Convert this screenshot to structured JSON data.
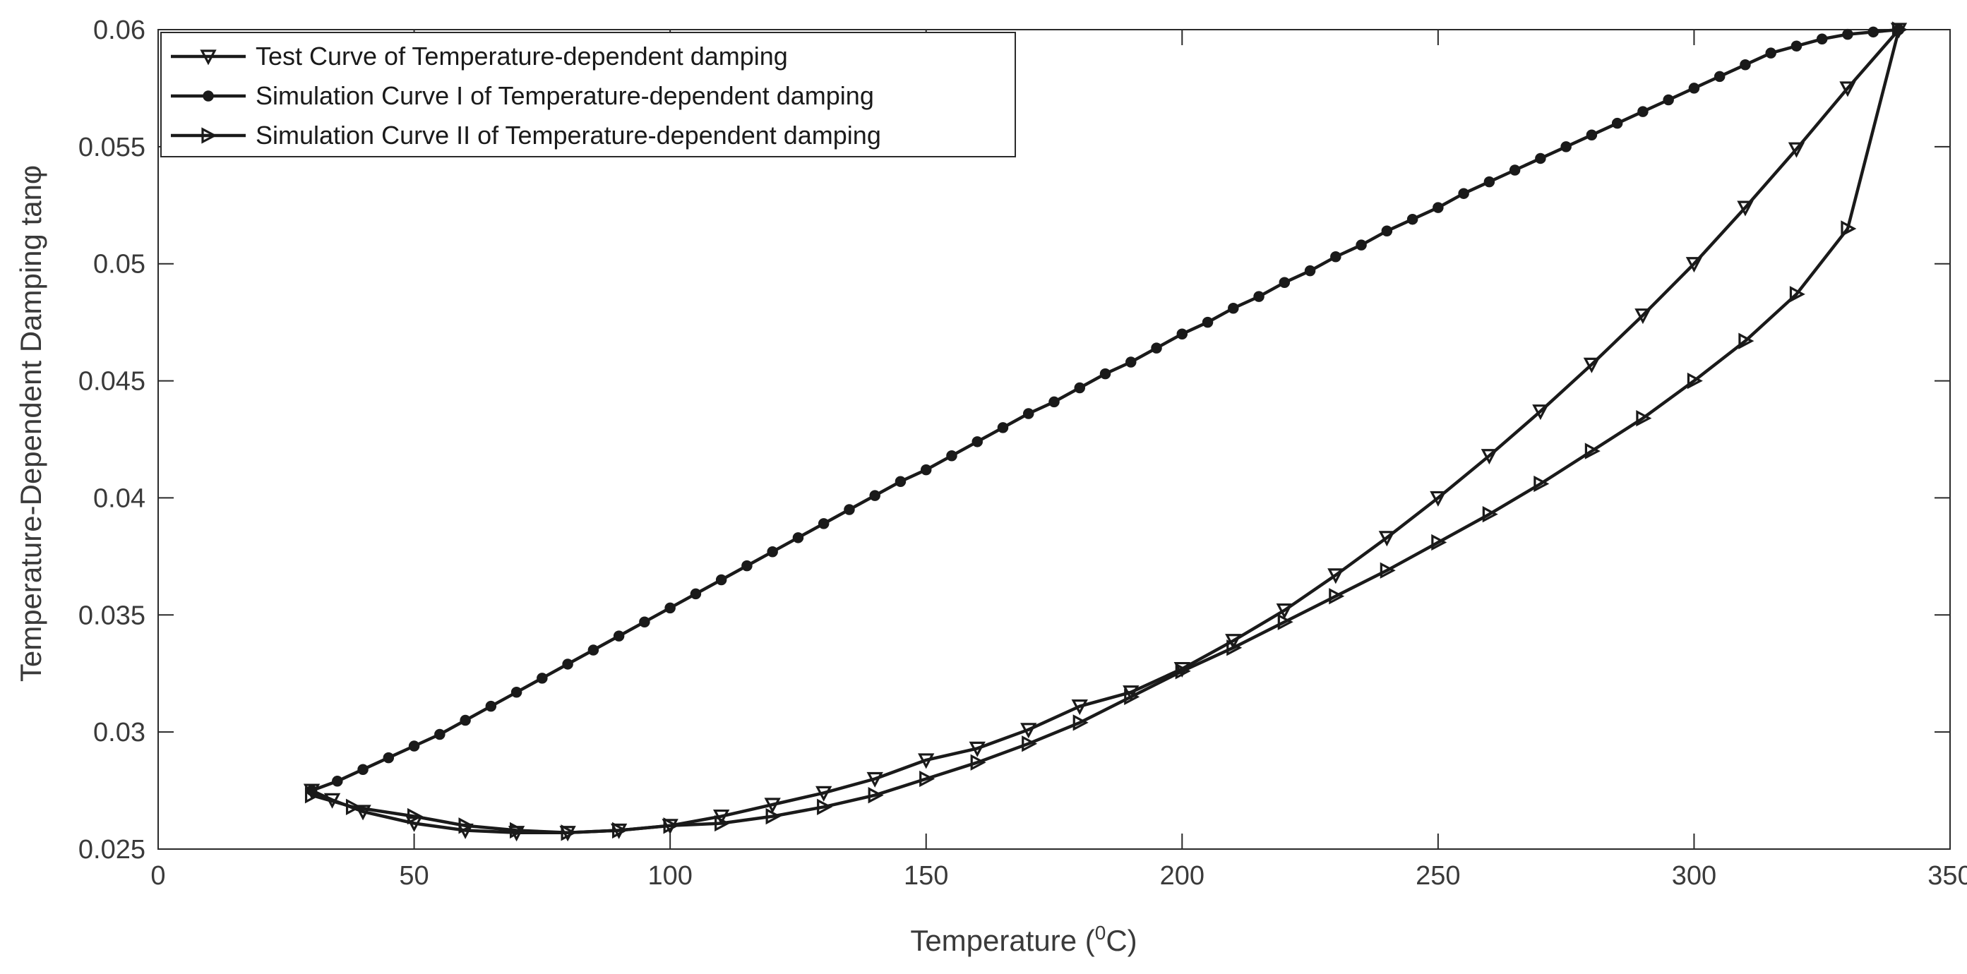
{
  "chart_data": {
    "type": "line",
    "title": "",
    "xlabel": "Temperature (",
    "xlabel_sup": "0",
    "xlabel_unit": "C)",
    "ylabel": "Temperature-Dependent Damping tanφ",
    "xlim": [
      0,
      350
    ],
    "ylim": [
      0.025,
      0.06
    ],
    "x_ticks": [
      0,
      50,
      100,
      150,
      200,
      250,
      300,
      350
    ],
    "y_ticks": [
      0.025,
      0.03,
      0.035,
      0.04,
      0.045,
      0.05,
      0.055,
      0.06
    ],
    "x_tick_labels": [
      "0",
      "50",
      "100",
      "150",
      "200",
      "250",
      "300",
      "350"
    ],
    "y_tick_labels": [
      "0.025",
      "0.03",
      "0.035",
      "0.04",
      "0.045",
      "0.05",
      "0.055",
      "0.06"
    ],
    "grid": false,
    "legend_position": "top-left",
    "series": [
      {
        "name": "Test Curve of Temperature-dependent damping",
        "marker": "triangle-down",
        "x": [
          30,
          34,
          40,
          50,
          60,
          70,
          80,
          90,
          100,
          110,
          120,
          130,
          140,
          150,
          160,
          170,
          180,
          190,
          200,
          210,
          220,
          230,
          240,
          250,
          260,
          270,
          280,
          290,
          300,
          310,
          320,
          330,
          340
        ],
        "y": [
          0.0275,
          0.0271,
          0.0266,
          0.0261,
          0.0258,
          0.0257,
          0.0257,
          0.0258,
          0.026,
          0.0264,
          0.0269,
          0.0274,
          0.028,
          0.0288,
          0.0293,
          0.0301,
          0.0311,
          0.0317,
          0.0327,
          0.0339,
          0.0352,
          0.0367,
          0.0383,
          0.04,
          0.0418,
          0.0437,
          0.0457,
          0.0478,
          0.05,
          0.0524,
          0.0549,
          0.0575,
          0.06
        ]
      },
      {
        "name": "Simulation Curve I of Temperature-dependent damping",
        "marker": "circle",
        "x": [
          30,
          35,
          40,
          45,
          50,
          55,
          60,
          65,
          70,
          75,
          80,
          85,
          90,
          95,
          100,
          105,
          110,
          115,
          120,
          125,
          130,
          135,
          140,
          145,
          150,
          155,
          160,
          165,
          170,
          175,
          180,
          185,
          190,
          195,
          200,
          205,
          210,
          215,
          220,
          225,
          230,
          235,
          240,
          245,
          250,
          255,
          260,
          265,
          270,
          275,
          280,
          285,
          290,
          295,
          300,
          305,
          310,
          315,
          320,
          325,
          330,
          335,
          340
        ],
        "y": [
          0.0275,
          0.0279,
          0.0284,
          0.0289,
          0.0294,
          0.0299,
          0.0305,
          0.0311,
          0.0317,
          0.0323,
          0.0329,
          0.0335,
          0.0341,
          0.0347,
          0.0353,
          0.0359,
          0.0365,
          0.0371,
          0.0377,
          0.0383,
          0.0389,
          0.0395,
          0.0401,
          0.0407,
          0.0412,
          0.0418,
          0.0424,
          0.043,
          0.0436,
          0.0441,
          0.0447,
          0.0453,
          0.0458,
          0.0464,
          0.047,
          0.0475,
          0.0481,
          0.0486,
          0.0492,
          0.0497,
          0.0503,
          0.0508,
          0.0514,
          0.0519,
          0.0524,
          0.053,
          0.0535,
          0.054,
          0.0545,
          0.055,
          0.0555,
          0.056,
          0.0565,
          0.057,
          0.0575,
          0.058,
          0.0585,
          0.059,
          0.0593,
          0.0596,
          0.0598,
          0.0599,
          0.06
        ]
      },
      {
        "name": "Simulation Curve II of Temperature-dependent damping",
        "marker": "triangle-right",
        "x": [
          30,
          38,
          50,
          60,
          70,
          80,
          90,
          100,
          110,
          120,
          130,
          140,
          150,
          160,
          170,
          180,
          190,
          200,
          210,
          220,
          230,
          240,
          250,
          260,
          270,
          280,
          290,
          300,
          310,
          320,
          330,
          340
        ],
        "y": [
          0.0273,
          0.0268,
          0.0264,
          0.026,
          0.0258,
          0.0257,
          0.0258,
          0.026,
          0.0261,
          0.0264,
          0.0268,
          0.0273,
          0.028,
          0.0287,
          0.0295,
          0.0304,
          0.0315,
          0.0326,
          0.0336,
          0.0347,
          0.0358,
          0.0369,
          0.0381,
          0.0393,
          0.0406,
          0.042,
          0.0434,
          0.045,
          0.0467,
          0.0487,
          0.0515,
          0.06
        ]
      }
    ]
  }
}
